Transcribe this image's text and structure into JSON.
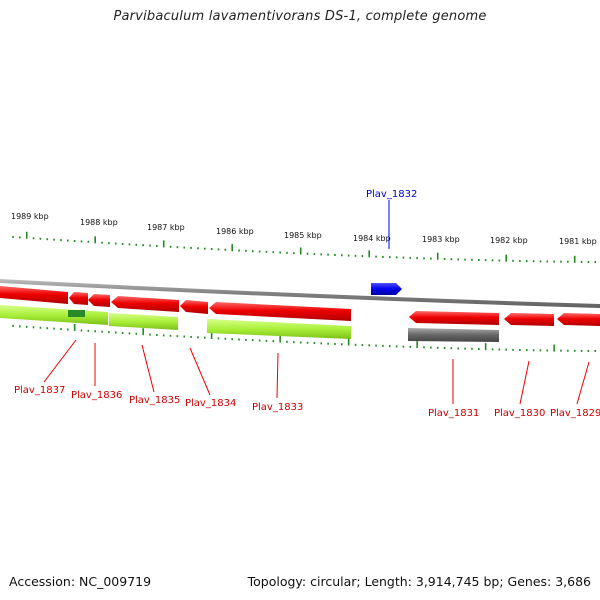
{
  "title": "Parvibaculum lavamentivorans DS-1, complete genome",
  "footer": {
    "accession": "Accession: NC_009719",
    "summary": "Topology: circular; Length: 3,914,745 bp; Genes: 3,686"
  },
  "colors": {
    "forward_gene": "#0000ee",
    "reverse_gene": "#ee0000",
    "feature_green": "#aaf03a",
    "feature_dark_green": "#2a8a2a",
    "backbone": "#808080",
    "tick": "#228b22",
    "pseudo_gray": "#666666"
  },
  "kbp_labels": [
    "1989 kbp",
    "1988 kbp",
    "1987 kbp",
    "1986 kbp",
    "1985 kbp",
    "1984 kbp",
    "1983 kbp",
    "1982 kbp",
    "1981 kbp"
  ],
  "genes": [
    {
      "name": "Plav_1837",
      "strand": "reverse"
    },
    {
      "name": "Plav_1836",
      "strand": "reverse"
    },
    {
      "name": "Plav_1835",
      "strand": "reverse"
    },
    {
      "name": "Plav_1834",
      "strand": "reverse"
    },
    {
      "name": "Plav_1833",
      "strand": "reverse"
    },
    {
      "name": "Plav_1832",
      "strand": "forward"
    },
    {
      "name": "Plav_1831",
      "strand": "reverse"
    },
    {
      "name": "Plav_1830",
      "strand": "reverse"
    },
    {
      "name": "Plav_1829",
      "strand": "reverse"
    }
  ]
}
